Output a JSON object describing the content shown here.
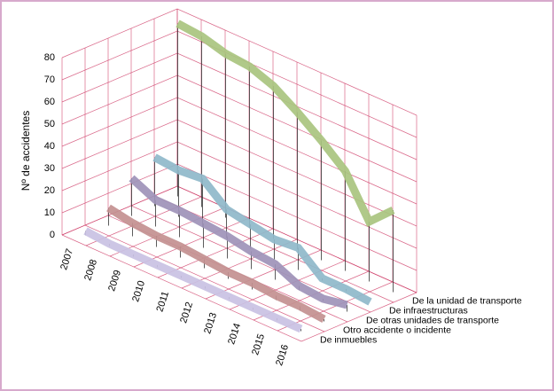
{
  "chart_data": {
    "type": "line",
    "ylabel": "Nº de accidentes",
    "categories": [
      "2007",
      "2008",
      "2009",
      "2010",
      "2011",
      "2012",
      "2013",
      "2014",
      "2015",
      "2016"
    ],
    "series": [
      {
        "name": "De inmuebles",
        "color": "#c9c1e3",
        "values": [
          2,
          1,
          1,
          1,
          1,
          1,
          1,
          1,
          1,
          1
        ]
      },
      {
        "name": "Otro accidente o incidente",
        "color": "#c39090",
        "values": [
          8,
          6,
          5,
          5,
          4,
          3,
          3,
          2,
          2,
          1
        ]
      },
      {
        "name": "De otras unidades de transporte",
        "color": "#9e93b8",
        "values": [
          17,
          12,
          12,
          11,
          10,
          8,
          7,
          2,
          1,
          3
        ]
      },
      {
        "name": "De infraestructuras",
        "color": "#8fb8ca",
        "values": [
          22,
          21,
          22,
          13,
          11,
          9,
          10,
          1,
          1,
          0
        ]
      },
      {
        "name": "De la unidad de transporte",
        "color": "#a9c47f",
        "values": [
          78,
          77,
          74,
          73,
          69,
          62,
          54,
          45,
          27,
          37
        ]
      }
    ],
    "ylim": [
      0,
      80
    ],
    "yticks": [
      0,
      10,
      20,
      30,
      40,
      50,
      60,
      70,
      80
    ],
    "grid": true
  }
}
